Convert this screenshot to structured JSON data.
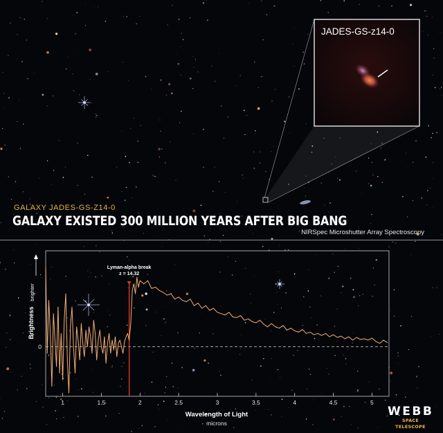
{
  "header": {
    "subtitle": "GALAXY JADES-GS-z14-0",
    "headline": "GALAXY EXISTED 300 MILLION YEARS AFTER BIG BANG",
    "method": "NIRSpec Microshutter Array Spectroscopy"
  },
  "inset": {
    "label": "JADES-GS-z14-0"
  },
  "logo": {
    "word": "WEBB",
    "sub": "SPACE TELESCOPE"
  },
  "colors": {
    "background": "#05060a",
    "spectrum": "#f4b072",
    "break_line": "#d8382a",
    "subtitle": "#e8b54a",
    "axis": "#d0d0d0"
  },
  "chart_data": {
    "type": "line",
    "title": "",
    "xlabel": "Wavelength of Light",
    "xunit": "microns",
    "ylabel": "Brightness",
    "y_arrow_label": "brighter",
    "xlim": [
      0.78,
      5.22
    ],
    "ylim": [
      -0.75,
      1.45
    ],
    "xticks": [
      1,
      1.5,
      2,
      2.5,
      3,
      3.5,
      4,
      4.5,
      5
    ],
    "xtick_labels": [
      "1",
      "1.5",
      "2",
      "2.5",
      "3",
      "3.5",
      "4",
      "4.5",
      "5"
    ],
    "yticks": [
      0
    ],
    "ytick_labels": [
      "0"
    ],
    "zero_line": "dashed",
    "grid": false,
    "legend": "none",
    "annotation": {
      "label": "Lyman-alpha break",
      "sublabel": "z = 14.32",
      "x": 1.86
    },
    "series": [
      {
        "x": [
          0.78,
          0.8,
          0.82,
          0.84,
          0.86,
          0.88,
          0.9,
          0.92,
          0.94,
          0.96,
          0.98,
          1.0,
          1.02,
          1.04,
          1.06,
          1.08,
          1.1,
          1.12,
          1.14,
          1.16,
          1.18,
          1.2,
          1.22,
          1.24,
          1.26,
          1.28,
          1.3,
          1.32,
          1.34,
          1.36,
          1.38,
          1.4,
          1.42,
          1.44,
          1.46,
          1.48,
          1.5,
          1.52,
          1.54,
          1.56,
          1.58,
          1.6,
          1.62,
          1.64,
          1.66,
          1.68,
          1.7,
          1.72,
          1.74,
          1.76,
          1.78,
          1.8,
          1.82,
          1.84,
          1.86,
          1.88,
          1.9,
          1.92,
          1.94,
          1.96,
          1.98,
          2.0,
          2.05,
          2.1,
          2.15,
          2.2,
          2.25,
          2.3,
          2.35,
          2.4,
          2.45,
          2.5,
          2.55,
          2.6,
          2.65,
          2.7,
          2.75,
          2.8,
          2.85,
          2.9,
          2.95,
          3.0,
          3.05,
          3.1,
          3.15,
          3.2,
          3.25,
          3.3,
          3.35,
          3.4,
          3.45,
          3.5,
          3.55,
          3.6,
          3.65,
          3.7,
          3.75,
          3.8,
          3.85,
          3.9,
          3.95,
          4.0,
          4.05,
          4.1,
          4.15,
          4.2,
          4.25,
          4.3,
          4.35,
          4.4,
          4.45,
          4.5,
          4.55,
          4.6,
          4.65,
          4.7,
          4.75,
          4.8,
          4.85,
          4.9,
          4.95,
          5.0,
          5.05,
          5.1,
          5.15,
          5.2
        ],
        "values": [
          1.2,
          -0.1,
          0.7,
          0.2,
          -0.6,
          0.5,
          0.1,
          -0.3,
          0.6,
          -0.4,
          0.2,
          -0.5,
          0.4,
          0.8,
          -0.2,
          -0.7,
          0.3,
          0.6,
          0.0,
          -0.4,
          0.3,
          0.1,
          -0.2,
          0.35,
          0.05,
          -0.15,
          0.25,
          0.0,
          0.3,
          0.15,
          -0.1,
          0.4,
          0.2,
          -0.2,
          0.1,
          0.25,
          0.0,
          -0.1,
          0.15,
          -0.25,
          0.05,
          0.2,
          -0.1,
          0.1,
          -0.05,
          0.15,
          -0.15,
          0.05,
          0.1,
          0.0,
          -0.1,
          0.08,
          0.15,
          0.2,
          0.1,
          0.35,
          0.85,
          0.95,
          0.8,
          1.05,
          0.9,
          1.0,
          0.95,
          1.0,
          0.88,
          0.9,
          0.85,
          0.82,
          0.78,
          0.8,
          0.72,
          0.75,
          0.7,
          0.68,
          0.72,
          0.62,
          0.66,
          0.58,
          0.62,
          0.55,
          0.58,
          0.52,
          0.5,
          0.48,
          0.52,
          0.45,
          0.44,
          0.47,
          0.4,
          0.42,
          0.38,
          0.36,
          0.4,
          0.34,
          0.3,
          0.35,
          0.3,
          0.28,
          0.32,
          0.25,
          0.28,
          0.24,
          0.22,
          0.26,
          0.2,
          0.22,
          0.18,
          0.2,
          0.17,
          0.2,
          0.15,
          0.18,
          0.14,
          0.16,
          0.12,
          0.15,
          0.1,
          0.14,
          0.11,
          0.12,
          0.1,
          0.13,
          0.08,
          0.05,
          0.1,
          0.06
        ]
      }
    ]
  }
}
